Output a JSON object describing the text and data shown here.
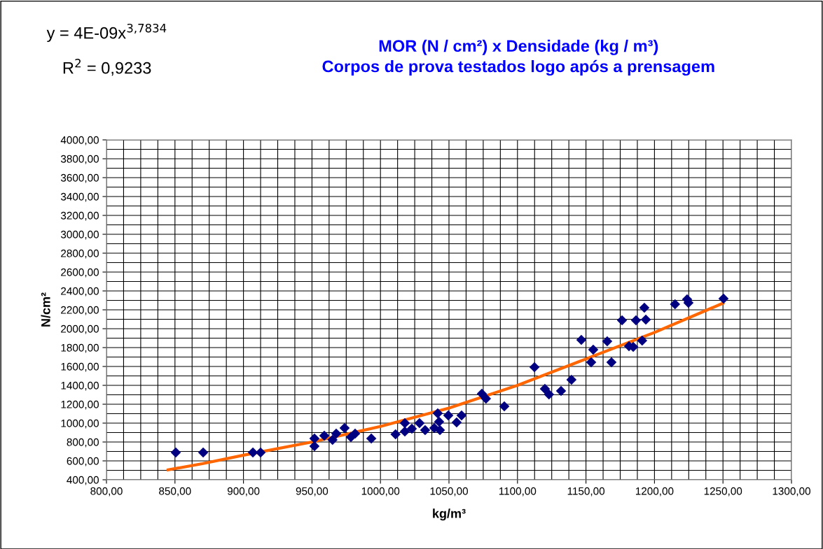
{
  "chart_data": {
    "type": "scatter",
    "title": "MOR (N / cm²) x Densidade (kg / m³)\nCorpos de prova testados logo após a prensagem",
    "xlabel": "kg/m³",
    "ylabel": "N/cm²",
    "annotations": [
      "y = 4E-09x$^{3,7834}$",
      "R$^{2}$ = 0,9233"
    ],
    "series": [
      {
        "color": "#000080",
        "marker": "diamond",
        "x": [
          850.6,
          870.6,
          906.9,
          912.5,
          951.8,
          951.8,
          959,
          965,
          967.7,
          973.8,
          978.4,
          981.5,
          993.3,
          1011,
          1017.8,
          1017.8,
          1022.9,
          1028.5,
          1032.6,
          1039.3,
          1041.8,
          1042.8,
          1043.4,
          1049.5,
          1055.6,
          1059.2,
          1074,
          1077,
          1090.4,
          1112.4,
          1120,
          1123,
          1131.8,
          1139.4,
          1146.6,
          1153.8,
          1155.3,
          1165.5,
          1168.6,
          1176.3,
          1181.4,
          1184.5,
          1186.5,
          1191,
          1192.6,
          1193.7,
          1215,
          1223.8,
          1224.8,
          1250.4
        ],
        "values": [
          689,
          689,
          689,
          689,
          837,
          756,
          867,
          822,
          889,
          948,
          852,
          889,
          837,
          881,
          1000,
          911,
          941,
          1000,
          926,
          948,
          1104,
          1015,
          926,
          1081,
          1007,
          1081,
          1311,
          1259,
          1178,
          1593,
          1363,
          1304,
          1341,
          1459,
          1881,
          1644,
          1778,
          1867,
          1644,
          2089,
          1815,
          1807,
          2089,
          1874,
          2222,
          2096,
          2259,
          2311,
          2274,
          2318
        ]
      },
      {
        "type": "line",
        "color": "#ff6600",
        "marker": "none",
        "line_style": "solid",
        "x": [
          845,
          870,
          900,
          950,
          1000,
          1050,
          1100,
          1150,
          1200,
          1250
        ],
        "values": [
          505,
          570,
          660,
          800,
          965,
          1160,
          1400,
          1680,
          1960,
          2270
        ]
      }
    ],
    "xlim": [
      800,
      1300
    ],
    "xticks": [
      {
        "value": 800,
        "label": "800,00"
      },
      {
        "value": 850,
        "label": "850,00"
      },
      {
        "value": 900,
        "label": "900,00"
      },
      {
        "value": 950,
        "label": "950,00"
      },
      {
        "value": 1000,
        "label": "1000,00"
      },
      {
        "value": 1050,
        "label": "1050,00"
      },
      {
        "value": 1100,
        "label": "1100,00"
      },
      {
        "value": 1150,
        "label": "1150,00"
      },
      {
        "value": 1200,
        "label": "1200,00"
      },
      {
        "value": 1250,
        "label": "1250,00"
      },
      {
        "value": 1300,
        "label": "1300,00"
      }
    ],
    "ylim": [
      400,
      4000
    ],
    "yticks": [
      {
        "value": 400,
        "label": "400,00"
      },
      {
        "value": 600,
        "label": "600,00"
      },
      {
        "value": 800,
        "label": "800,00"
      },
      {
        "value": 1000,
        "label": "1000,00"
      },
      {
        "value": 1200,
        "label": "1200,00"
      },
      {
        "value": 1400,
        "label": "1400,00"
      },
      {
        "value": 1600,
        "label": "1600,00"
      },
      {
        "value": 1800,
        "label": "1800,00"
      },
      {
        "value": 2000,
        "label": "2000,00"
      },
      {
        "value": 2200,
        "label": "2200,00"
      },
      {
        "value": 2400,
        "label": "2400,00"
      },
      {
        "value": 2600,
        "label": "2600,00"
      },
      {
        "value": 2800,
        "label": "2800,00"
      },
      {
        "value": 3000,
        "label": "3000,00"
      },
      {
        "value": 3200,
        "label": "3200,00"
      },
      {
        "value": 3400,
        "label": "3400,00"
      },
      {
        "value": 3600,
        "label": "3600,00"
      },
      {
        "value": 3800,
        "label": "3800,00"
      },
      {
        "value": 4000,
        "label": "4000,00"
      }
    ],
    "grid": true,
    "legend": false
  }
}
